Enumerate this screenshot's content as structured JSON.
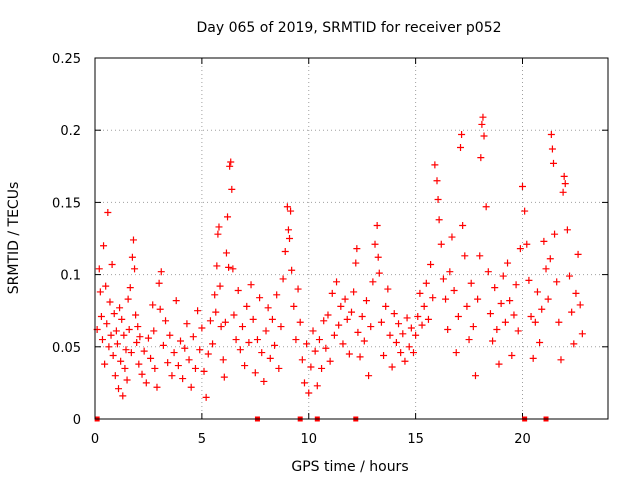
{
  "chart_data": {
    "type": "scatter",
    "title": "Day 065 of 2019, SRMTID for receiver p052",
    "xlabel": "GPS time / hours",
    "ylabel": "SRMTID / TECUs",
    "xlim": [
      0,
      24
    ],
    "ylim": [
      0,
      0.25
    ],
    "xticks": [
      0,
      5,
      10,
      15,
      20
    ],
    "xtick_labels": [
      "0",
      "5",
      "10",
      "15",
      "20"
    ],
    "yticks": [
      0,
      0.05,
      0.1,
      0.15,
      0.2,
      0.25
    ],
    "ytick_labels": [
      "0",
      "0.05",
      "0.1",
      "0.15",
      "0.2",
      "0.25"
    ],
    "grid": true,
    "marker": "plus",
    "color": "#ff0000",
    "series": [
      {
        "name": "SRMTID",
        "points": [
          [
            0.1,
            0.062
          ],
          [
            0.2,
            0.104
          ],
          [
            0.25,
            0.088
          ],
          [
            0.3,
            0.071
          ],
          [
            0.35,
            0.055
          ],
          [
            0.4,
            0.12
          ],
          [
            0.45,
            0.038
          ],
          [
            0.5,
            0.092
          ],
          [
            0.55,
            0.066
          ],
          [
            0.6,
            0.143
          ],
          [
            0.65,
            0.05
          ],
          [
            0.7,
            0.081
          ],
          [
            0.75,
            0.058
          ],
          [
            0.8,
            0.107
          ],
          [
            0.85,
            0.044
          ],
          [
            0.9,
            0.073
          ],
          [
            0.95,
            0.03
          ],
          [
            1.0,
            0.061
          ],
          [
            1.05,
            0.052
          ],
          [
            1.1,
            0.021
          ],
          [
            1.15,
            0.077
          ],
          [
            1.2,
            0.04
          ],
          [
            1.25,
            0.069
          ],
          [
            1.3,
            0.016
          ],
          [
            1.35,
            0.058
          ],
          [
            1.4,
            0.035
          ],
          [
            1.45,
            0.048
          ],
          [
            1.5,
            0.027
          ],
          [
            1.55,
            0.083
          ],
          [
            1.6,
            0.062
          ],
          [
            1.65,
            0.091
          ],
          [
            1.7,
            0.046
          ],
          [
            1.75,
            0.112
          ],
          [
            1.8,
            0.124
          ],
          [
            1.85,
            0.104
          ],
          [
            1.9,
            0.072
          ],
          [
            1.95,
            0.053
          ],
          [
            2.0,
            0.064
          ],
          [
            2.05,
            0.038
          ],
          [
            2.1,
            0.057
          ],
          [
            2.2,
            0.031
          ],
          [
            2.3,
            0.047
          ],
          [
            2.4,
            0.025
          ],
          [
            2.5,
            0.056
          ],
          [
            2.6,
            0.042
          ],
          [
            2.7,
            0.079
          ],
          [
            2.75,
            0.061
          ],
          [
            2.8,
            0.035
          ],
          [
            2.9,
            0.022
          ],
          [
            3.0,
            0.094
          ],
          [
            3.05,
            0.076
          ],
          [
            3.1,
            0.102
          ],
          [
            3.2,
            0.051
          ],
          [
            3.3,
            0.068
          ],
          [
            3.4,
            0.039
          ],
          [
            3.5,
            0.058
          ],
          [
            3.6,
            0.03
          ],
          [
            3.7,
            0.046
          ],
          [
            3.8,
            0.082
          ],
          [
            3.9,
            0.037
          ],
          [
            4.0,
            0.054
          ],
          [
            4.1,
            0.028
          ],
          [
            4.2,
            0.049
          ],
          [
            4.3,
            0.066
          ],
          [
            4.4,
            0.041
          ],
          [
            4.5,
            0.022
          ],
          [
            4.6,
            0.057
          ],
          [
            4.7,
            0.035
          ],
          [
            4.8,
            0.075
          ],
          [
            4.9,
            0.048
          ],
          [
            5.0,
            0.063
          ],
          [
            5.1,
            0.033
          ],
          [
            5.2,
            0.015
          ],
          [
            5.3,
            0.045
          ],
          [
            5.4,
            0.068
          ],
          [
            5.5,
            0.052
          ],
          [
            5.6,
            0.086
          ],
          [
            5.65,
            0.074
          ],
          [
            5.7,
            0.106
          ],
          [
            5.75,
            0.128
          ],
          [
            5.8,
            0.133
          ],
          [
            5.85,
            0.092
          ],
          [
            5.9,
            0.064
          ],
          [
            6.0,
            0.041
          ],
          [
            6.05,
            0.029
          ],
          [
            6.1,
            0.067
          ],
          [
            6.15,
            0.115
          ],
          [
            6.2,
            0.14
          ],
          [
            6.25,
            0.105
          ],
          [
            6.3,
            0.175
          ],
          [
            6.35,
            0.178
          ],
          [
            6.4,
            0.159
          ],
          [
            6.45,
            0.104
          ],
          [
            6.5,
            0.072
          ],
          [
            6.6,
            0.055
          ],
          [
            6.7,
            0.089
          ],
          [
            6.8,
            0.048
          ],
          [
            6.9,
            0.064
          ],
          [
            7.0,
            0.037
          ],
          [
            7.1,
            0.078
          ],
          [
            7.2,
            0.053
          ],
          [
            7.3,
            0.093
          ],
          [
            7.4,
            0.069
          ],
          [
            7.5,
            0.032
          ],
          [
            7.6,
            0.055
          ],
          [
            7.7,
            0.084
          ],
          [
            7.8,
            0.046
          ],
          [
            7.9,
            0.026
          ],
          [
            8.0,
            0.061
          ],
          [
            8.1,
            0.077
          ],
          [
            8.2,
            0.042
          ],
          [
            8.3,
            0.069
          ],
          [
            8.4,
            0.051
          ],
          [
            8.5,
            0.086
          ],
          [
            8.6,
            0.035
          ],
          [
            8.7,
            0.064
          ],
          [
            8.8,
            0.097
          ],
          [
            8.9,
            0.116
          ],
          [
            9.0,
            0.147
          ],
          [
            9.05,
            0.131
          ],
          [
            9.1,
            0.125
          ],
          [
            9.15,
            0.144
          ],
          [
            9.2,
            0.103
          ],
          [
            9.3,
            0.078
          ],
          [
            9.4,
            0.055
          ],
          [
            9.5,
            0.09
          ],
          [
            9.6,
            0.067
          ],
          [
            9.7,
            0.041
          ],
          [
            9.8,
            0.025
          ],
          [
            9.9,
            0.052
          ],
          [
            10.0,
            0.018
          ],
          [
            10.1,
            0.036
          ],
          [
            10.2,
            0.061
          ],
          [
            10.3,
            0.047
          ],
          [
            10.4,
            0.023
          ],
          [
            10.5,
            0.055
          ],
          [
            10.6,
            0.035
          ],
          [
            10.7,
            0.068
          ],
          [
            10.8,
            0.049
          ],
          [
            10.9,
            0.072
          ],
          [
            11.0,
            0.04
          ],
          [
            11.1,
            0.087
          ],
          [
            11.2,
            0.058
          ],
          [
            11.3,
            0.095
          ],
          [
            11.4,
            0.065
          ],
          [
            11.5,
            0.078
          ],
          [
            11.6,
            0.052
          ],
          [
            11.7,
            0.083
          ],
          [
            11.8,
            0.069
          ],
          [
            11.9,
            0.045
          ],
          [
            12.0,
            0.074
          ],
          [
            12.1,
            0.088
          ],
          [
            12.2,
            0.108
          ],
          [
            12.25,
            0.118
          ],
          [
            12.3,
            0.06
          ],
          [
            12.4,
            0.043
          ],
          [
            12.5,
            0.071
          ],
          [
            12.6,
            0.054
          ],
          [
            12.7,
            0.082
          ],
          [
            12.8,
            0.03
          ],
          [
            12.9,
            0.064
          ],
          [
            13.0,
            0.095
          ],
          [
            13.1,
            0.121
          ],
          [
            13.2,
            0.134
          ],
          [
            13.25,
            0.112
          ],
          [
            13.3,
            0.101
          ],
          [
            13.4,
            0.067
          ],
          [
            13.5,
            0.044
          ],
          [
            13.6,
            0.078
          ],
          [
            13.7,
            0.09
          ],
          [
            13.8,
            0.058
          ],
          [
            13.9,
            0.036
          ],
          [
            14.0,
            0.073
          ],
          [
            14.1,
            0.053
          ],
          [
            14.2,
            0.066
          ],
          [
            14.3,
            0.046
          ],
          [
            14.4,
            0.059
          ],
          [
            14.5,
            0.04
          ],
          [
            14.6,
            0.07
          ],
          [
            14.7,
            0.05
          ],
          [
            14.8,
            0.063
          ],
          [
            14.9,
            0.046
          ],
          [
            15.0,
            0.058
          ],
          [
            15.1,
            0.071
          ],
          [
            15.2,
            0.087
          ],
          [
            15.3,
            0.065
          ],
          [
            15.4,
            0.078
          ],
          [
            15.5,
            0.094
          ],
          [
            15.6,
            0.069
          ],
          [
            15.7,
            0.107
          ],
          [
            15.8,
            0.084
          ],
          [
            15.9,
            0.176
          ],
          [
            16.0,
            0.165
          ],
          [
            16.05,
            0.152
          ],
          [
            16.1,
            0.138
          ],
          [
            16.2,
            0.121
          ],
          [
            16.3,
            0.097
          ],
          [
            16.4,
            0.083
          ],
          [
            16.5,
            0.062
          ],
          [
            16.6,
            0.102
          ],
          [
            16.7,
            0.126
          ],
          [
            16.8,
            0.089
          ],
          [
            16.9,
            0.046
          ],
          [
            17.0,
            0.071
          ],
          [
            17.1,
            0.188
          ],
          [
            17.15,
            0.197
          ],
          [
            17.2,
            0.134
          ],
          [
            17.3,
            0.113
          ],
          [
            17.4,
            0.078
          ],
          [
            17.5,
            0.055
          ],
          [
            17.6,
            0.094
          ],
          [
            17.7,
            0.064
          ],
          [
            17.8,
            0.03
          ],
          [
            17.9,
            0.083
          ],
          [
            18.0,
            0.113
          ],
          [
            18.05,
            0.181
          ],
          [
            18.1,
            0.204
          ],
          [
            18.15,
            0.209
          ],
          [
            18.2,
            0.196
          ],
          [
            18.3,
            0.147
          ],
          [
            18.4,
            0.102
          ],
          [
            18.5,
            0.073
          ],
          [
            18.6,
            0.054
          ],
          [
            18.7,
            0.091
          ],
          [
            18.8,
            0.062
          ],
          [
            18.9,
            0.038
          ],
          [
            19.0,
            0.08
          ],
          [
            19.1,
            0.099
          ],
          [
            19.2,
            0.067
          ],
          [
            19.3,
            0.108
          ],
          [
            19.4,
            0.082
          ],
          [
            19.5,
            0.044
          ],
          [
            19.6,
            0.072
          ],
          [
            19.7,
            0.093
          ],
          [
            19.8,
            0.061
          ],
          [
            19.9,
            0.118
          ],
          [
            20.0,
            0.161
          ],
          [
            20.1,
            0.144
          ],
          [
            20.2,
            0.121
          ],
          [
            20.3,
            0.096
          ],
          [
            20.4,
            0.071
          ],
          [
            20.5,
            0.042
          ],
          [
            20.6,
            0.067
          ],
          [
            20.7,
            0.088
          ],
          [
            20.8,
            0.053
          ],
          [
            20.9,
            0.076
          ],
          [
            21.0,
            0.123
          ],
          [
            21.1,
            0.104
          ],
          [
            21.2,
            0.083
          ],
          [
            21.3,
            0.111
          ],
          [
            21.35,
            0.197
          ],
          [
            21.4,
            0.187
          ],
          [
            21.45,
            0.177
          ],
          [
            21.5,
            0.128
          ],
          [
            21.6,
            0.095
          ],
          [
            21.7,
            0.067
          ],
          [
            21.8,
            0.041
          ],
          [
            21.9,
            0.157
          ],
          [
            21.95,
            0.168
          ],
          [
            22.0,
            0.163
          ],
          [
            22.1,
            0.131
          ],
          [
            22.2,
            0.099
          ],
          [
            22.3,
            0.074
          ],
          [
            22.4,
            0.052
          ],
          [
            22.5,
            0.087
          ],
          [
            22.6,
            0.114
          ],
          [
            22.7,
            0.079
          ],
          [
            22.8,
            0.059
          ]
        ]
      }
    ],
    "markers_on_xaxis": [
      0.1,
      7.6,
      9.6,
      10.4,
      12.2,
      20.1,
      21.1
    ]
  }
}
